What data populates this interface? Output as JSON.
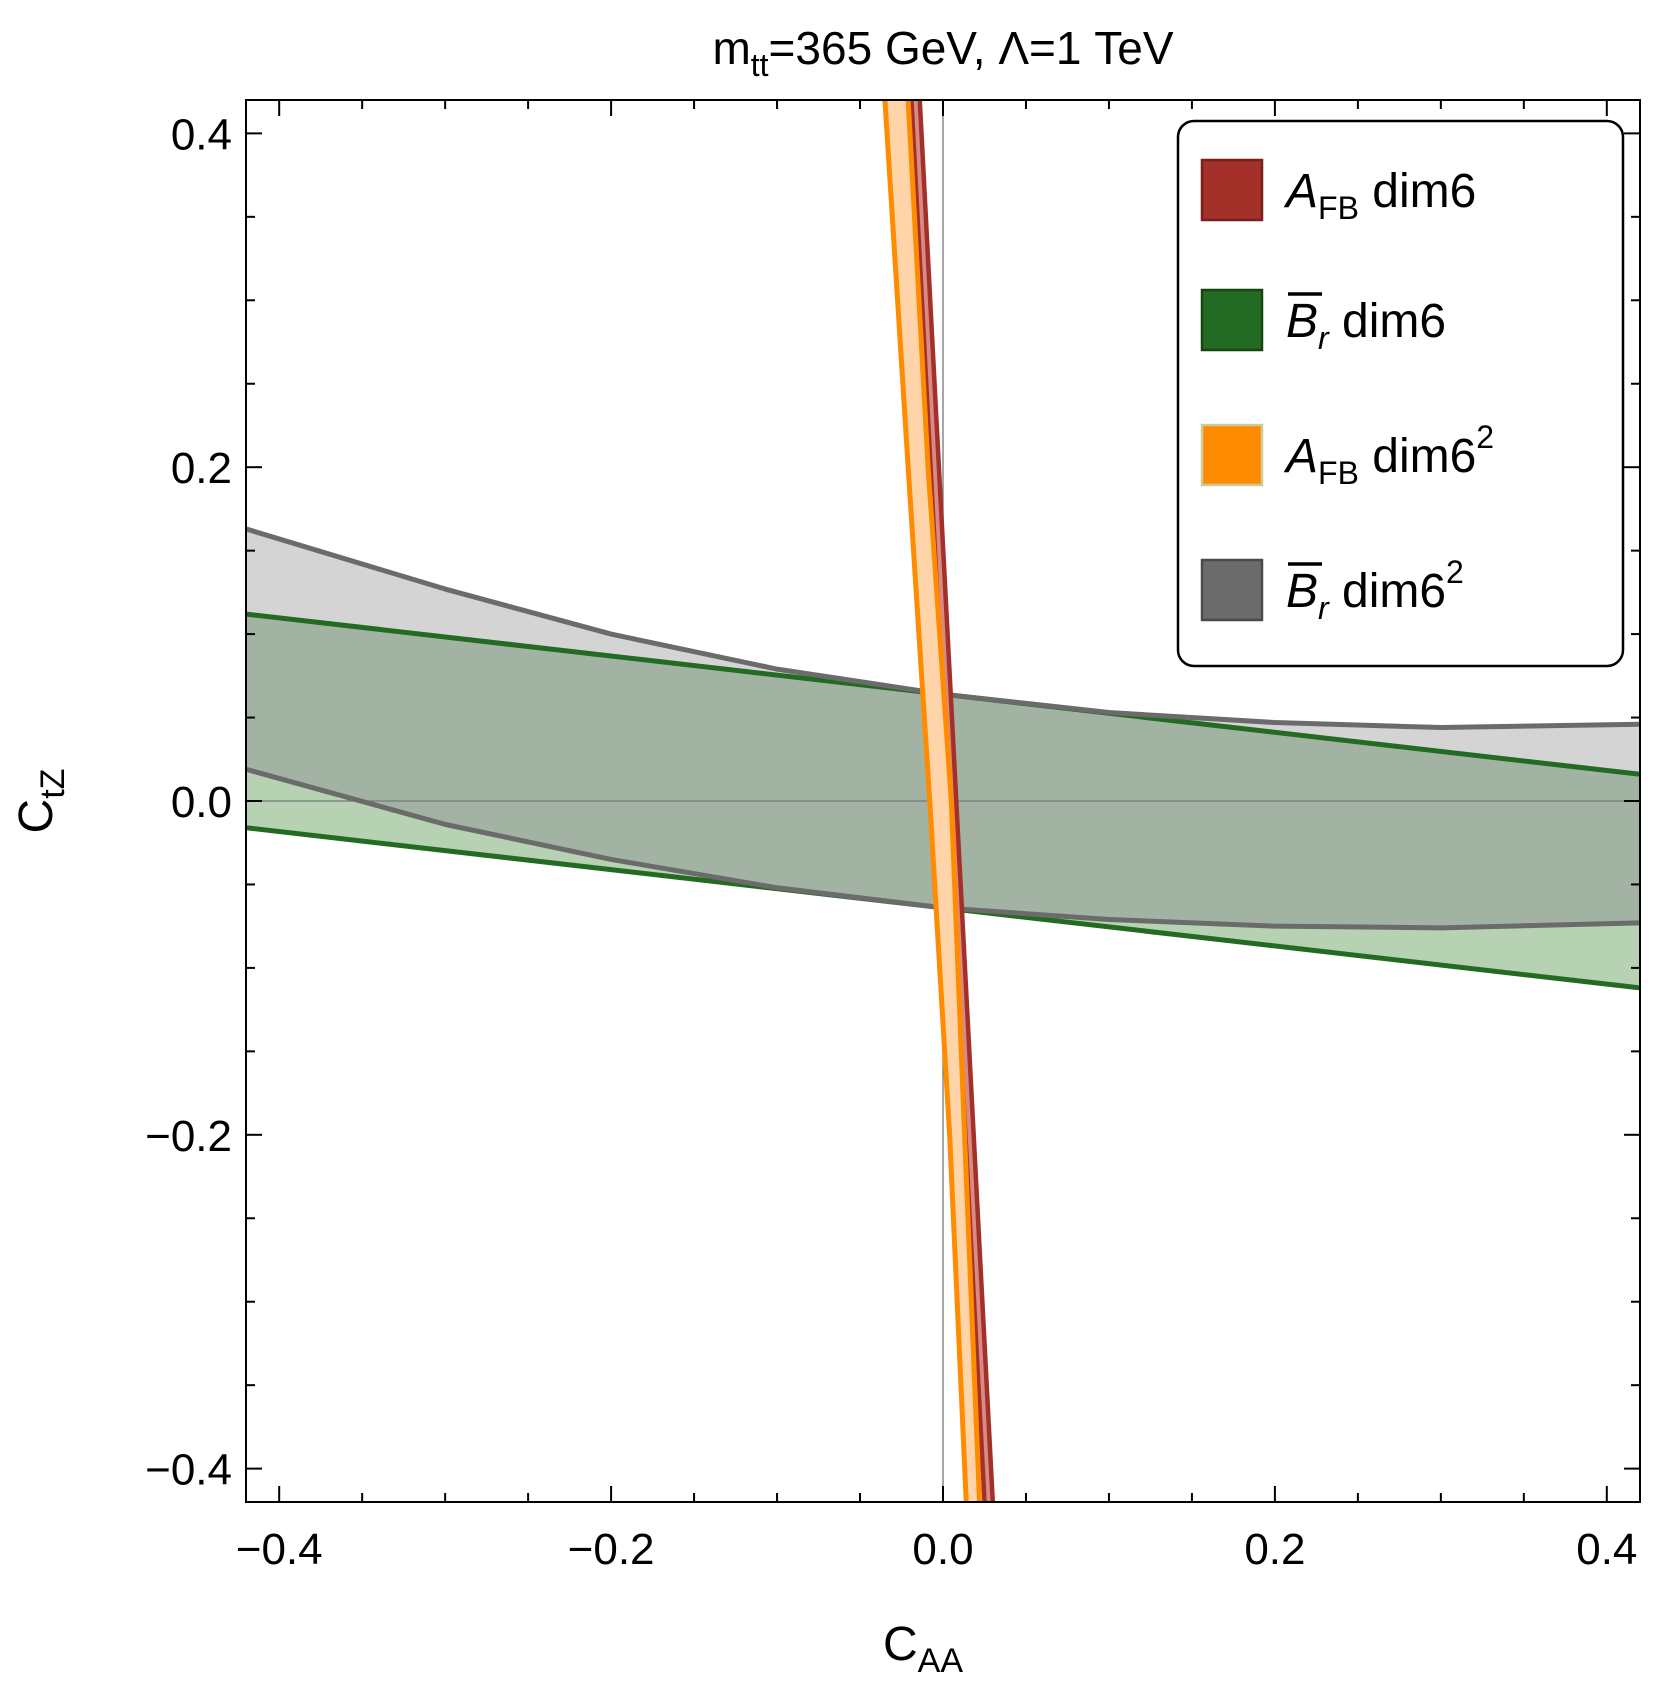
{
  "chart_data": {
    "type": "region",
    "title": {
      "m_main": "m",
      "m_sub": "tt",
      "rest": "=365 GeV, Λ=1 TeV"
    },
    "xlabel": {
      "main": "C",
      "sub": "AA"
    },
    "ylabel": {
      "main": "C",
      "sub": "tZ"
    },
    "xlim": [
      -0.42,
      0.42
    ],
    "ylim": [
      -0.42,
      0.42
    ],
    "xticks": [
      -0.4,
      -0.2,
      0.0,
      0.2,
      0.4
    ],
    "yticks": [
      -0.4,
      -0.2,
      0.0,
      0.2,
      0.4
    ],
    "xtick_labels": [
      "−0.4",
      "−0.2",
      "0.0",
      "0.2",
      "0.4"
    ],
    "ytick_labels": [
      "−0.4",
      "−0.2",
      "0.0",
      "0.2",
      "0.4"
    ],
    "legend_position": "top-right",
    "colors": {
      "afb_dim6": "#a3312a",
      "br_dim6": "#236a22",
      "br_dim6_fill": "#b6d2b3",
      "afb_dim6sq": "#ff8b00",
      "afb_dim6sq_fill": "#ffd4a8",
      "br_dim6sq": "#6b6b6b",
      "br_dim6sq_fill": "#d4d4d4",
      "overlap_fill": "#a3b3a3"
    },
    "series": [
      {
        "id": "afb_dim6",
        "name_main": "A",
        "name_sub": "FB",
        "name_rest": " dim6",
        "name_sup": "",
        "overline": false,
        "kind": "band",
        "lower_edge": {
          "x": [
            -0.019,
            0.025
          ],
          "y": [
            0.42,
            -0.42
          ]
        },
        "upper_edge": {
          "x": [
            -0.014,
            0.03
          ],
          "y": [
            0.42,
            -0.42
          ]
        }
      },
      {
        "id": "br_dim6",
        "name_main": "B",
        "name_sub": "r",
        "name_rest": " dim6",
        "name_sup": "",
        "overline": true,
        "kind": "band",
        "upper": {
          "x": [
            -0.42,
            0.42
          ],
          "y": [
            0.112,
            0.016
          ]
        },
        "lower": {
          "x": [
            -0.42,
            0.42
          ],
          "y": [
            -0.016,
            -0.112
          ]
        }
      },
      {
        "id": "afb_dim6sq",
        "name_main": "A",
        "name_sub": "FB",
        "name_rest": "  dim6",
        "name_sup": "2",
        "overline": false,
        "kind": "band",
        "left_edge": {
          "y": [
            0.42,
            0.2,
            0.0,
            -0.2,
            -0.42
          ],
          "x": [
            -0.035,
            -0.021,
            -0.008,
            0.004,
            0.014
          ]
        },
        "right_edge": {
          "y": [
            0.42,
            0.2,
            0.0,
            -0.2,
            -0.42
          ],
          "x": [
            -0.021,
            -0.009,
            0.005,
            0.013,
            0.022
          ]
        }
      },
      {
        "id": "br_dim6sq",
        "name_main": "B",
        "name_sub": "r",
        "name_rest": "  dim6",
        "name_sup": "2",
        "overline": true,
        "kind": "band",
        "upper": {
          "x": [
            -0.42,
            -0.3,
            -0.2,
            -0.1,
            0.0,
            0.1,
            0.2,
            0.3,
            0.42
          ],
          "y": [
            0.163,
            0.127,
            0.1,
            0.079,
            0.064,
            0.053,
            0.047,
            0.044,
            0.046
          ]
        },
        "lower": {
          "x": [
            -0.42,
            -0.3,
            -0.2,
            -0.1,
            0.0,
            0.1,
            0.2,
            0.3,
            0.42
          ],
          "y": [
            0.019,
            -0.014,
            -0.035,
            -0.052,
            -0.064,
            -0.071,
            -0.075,
            -0.076,
            -0.073
          ]
        }
      }
    ]
  }
}
